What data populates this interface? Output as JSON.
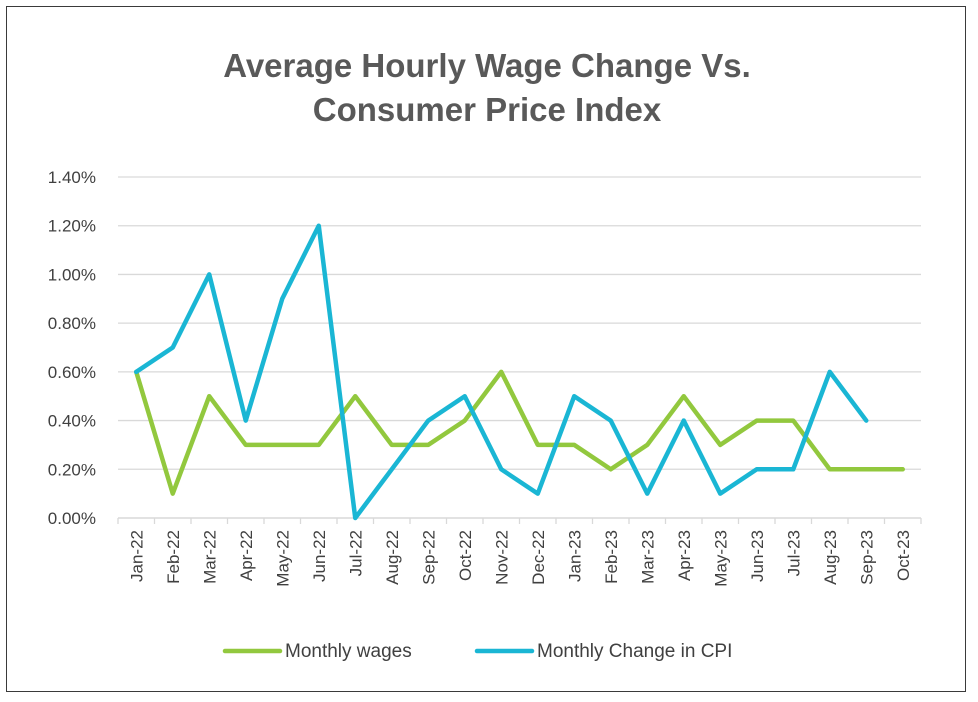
{
  "chart_data": {
    "type": "line",
    "title": [
      "Average Hourly Wage Change Vs.",
      "Consumer Price Index"
    ],
    "categories": [
      "Jan-22",
      "Feb-22",
      "Mar-22",
      "Apr-22",
      "May-22",
      "Jun-22",
      "Jul-22",
      "Aug-22",
      "Sep-22",
      "Oct-22",
      "Nov-22",
      "Dec-22",
      "Jan-23",
      "Feb-23",
      "Mar-23",
      "Apr-23",
      "May-23",
      "Jun-23",
      "Jul-23",
      "Aug-23",
      "Sep-23",
      "Oct-23"
    ],
    "y_ticks": [
      "0.00%",
      "0.20%",
      "0.40%",
      "0.60%",
      "0.80%",
      "1.00%",
      "1.20%",
      "1.40%"
    ],
    "ylim": [
      0,
      1.4
    ],
    "grid": "horizontal",
    "legend_position": "bottom",
    "series": [
      {
        "name": "Monthly wages",
        "color": "#92c83e",
        "values": [
          0.6,
          0.1,
          0.5,
          0.3,
          0.3,
          0.3,
          0.5,
          0.3,
          0.3,
          0.4,
          0.6,
          0.3,
          0.3,
          0.2,
          0.3,
          0.5,
          0.3,
          0.4,
          0.4,
          0.2,
          0.2,
          0.2
        ]
      },
      {
        "name": "Monthly Change in CPI",
        "color": "#1ab6d4",
        "values": [
          0.6,
          0.7,
          1.0,
          0.4,
          0.9,
          1.2,
          0.0,
          0.2,
          0.4,
          0.5,
          0.2,
          0.1,
          0.5,
          0.4,
          0.1,
          0.4,
          0.1,
          0.2,
          0.2,
          0.6,
          0.4,
          null
        ]
      }
    ]
  }
}
